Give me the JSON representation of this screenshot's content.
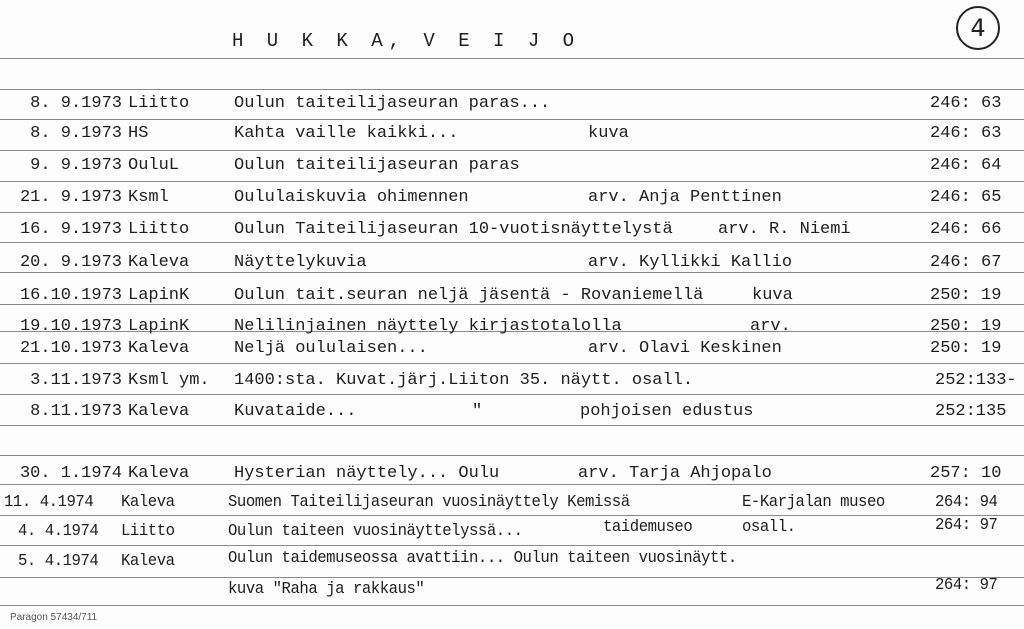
{
  "header": {
    "name": "H U K K A,   V E I J O",
    "card_mark": "4"
  },
  "rows": [
    {
      "date": "8. 9.1973",
      "source": "Liitto",
      "title": "Oulun taiteilijaseuran paras...",
      "note": "",
      "page": "246: 63"
    },
    {
      "date": "8. 9.1973",
      "source": "HS",
      "title": "Kahta vaille kaikki...",
      "note": "kuva",
      "page": "246: 63"
    },
    {
      "date": "9. 9.1973",
      "source": "OuluL",
      "title": "Oulun taiteilijaseuran paras",
      "note": "",
      "page": "246: 64"
    },
    {
      "date": "21. 9.1973",
      "source": "Ksml",
      "title": "Oululaiskuvia ohimennen",
      "note": "arv. Anja Penttinen",
      "page": "246: 65"
    },
    {
      "date": "16. 9.1973",
      "source": "Liitto",
      "title": "Oulun Taiteilijaseuran 10-vuotisnäyttelystä",
      "note": "arv. R. Niemi",
      "page": "246: 66"
    },
    {
      "date": "20. 9.1973",
      "source": "Kaleva",
      "title": "Näyttelykuvia",
      "note": "arv. Kyllikki Kallio",
      "page": "246: 67"
    },
    {
      "date": "16.10.1973",
      "source": "LapinK",
      "title": "Oulun tait.seuran neljä jäsentä - Rovaniemellä",
      "note": "kuva",
      "page": "250: 19"
    },
    {
      "date": "19.10.1973",
      "source": "LapinK",
      "title": "Nelilinjainen näyttely kirjastotalolla",
      "note": "arv.",
      "page": "250: 19"
    },
    {
      "date": "21.10.1973",
      "source": "Kaleva",
      "title": "Neljä oululaisen...",
      "note": "arv. Olavi Keskinen",
      "page": "250: 19"
    },
    {
      "date": "3.11.1973",
      "source": "Ksml ym.",
      "title": "1400:sta. Kuvat.järj.Liiton 35. näytt. osall.",
      "note": "",
      "page": "252:133-"
    },
    {
      "date": "8.11.1973",
      "source": "Kaleva",
      "title": "Kuvataide...",
      "ditto": "\"",
      "note": "pohjoisen edustus",
      "page": "252:135"
    },
    {
      "date": "30. 1.1974",
      "source": "Kaleva",
      "title": "Hysterian näyttely... Oulu",
      "note": "arv. Tarja Ahjopalo",
      "page": "257: 10"
    },
    {
      "date": "11. 4.1974",
      "source": "Kaleva",
      "title": "Suomen Taiteilijaseuran vuosinäyttely Kemissä",
      "note": "E-Karjalan museo",
      "page": "264: 94"
    },
    {
      "date": "4. 4.1974",
      "source": "Liitto",
      "title": "Oulun taiteen vuosinäyttelyssä...",
      "note2": "taidemuseo",
      "note": "osall.",
      "page": "264: 97"
    },
    {
      "date": "5. 4.1974",
      "source": "Kaleva",
      "title": "Oulun taidemuseossa avattiin... Oulun taiteen vuosinäytt.",
      "note": "",
      "page": ""
    },
    {
      "date": "",
      "source": "",
      "title": "kuva \"Raha ja rakkaus\"",
      "note": "",
      "page": "264: 97"
    }
  ],
  "footer": {
    "printer": "Paragon 57434/711"
  }
}
